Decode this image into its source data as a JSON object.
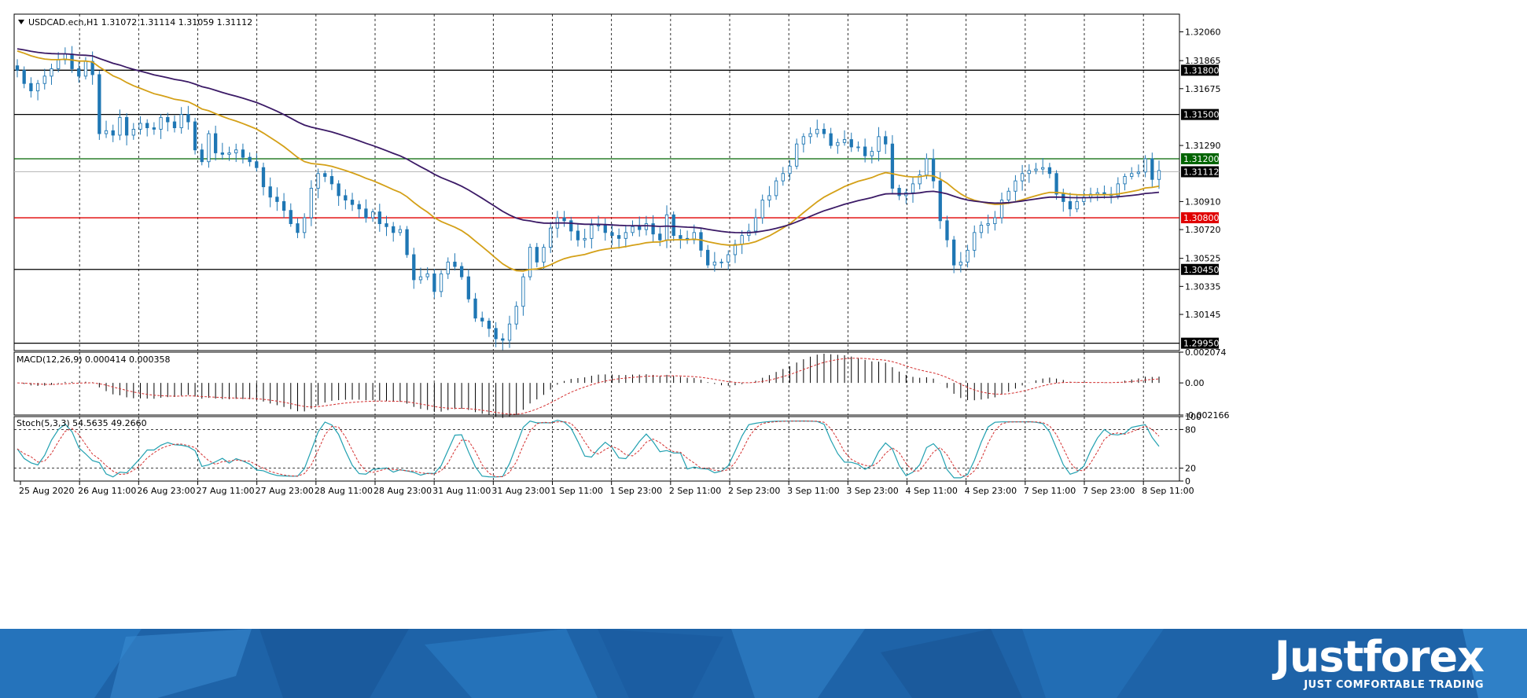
{
  "chart_data": [
    {
      "type": "candlestick",
      "title": "USDCAD.ecn,H1  1.31072 1.31114 1.31059 1.31112",
      "ylim": [
        1.299,
        1.3218
      ],
      "y_ticks": [
        "1.32060",
        "1.31865",
        "1.31675",
        "1.31290",
        "1.30910",
        "1.30720",
        "1.30525",
        "1.30335",
        "1.30145"
      ],
      "x_ticks": [
        "25 Aug 2020",
        "26 Aug 11:00",
        "26 Aug 23:00",
        "27 Aug 11:00",
        "27 Aug 23:00",
        "28 Aug 11:00",
        "28 Aug 23:00",
        "31 Aug 11:00",
        "31 Aug 23:00",
        "1 Sep 11:00",
        "1 Sep 23:00",
        "2 Sep 11:00",
        "2 Sep 23:00",
        "3 Sep 11:00",
        "3 Sep 23:00",
        "4 Sep 11:00",
        "4 Sep 23:00",
        "7 Sep 11:00",
        "7 Sep 23:00",
        "8 Sep 11:00"
      ],
      "horizontal_levels": [
        {
          "value": 1.318,
          "label": "1.31800",
          "color": "#000000"
        },
        {
          "value": 1.315,
          "label": "1.31500",
          "color": "#000000"
        },
        {
          "value": 1.312,
          "label": "1.31200",
          "color": "#006400"
        },
        {
          "value": 1.308,
          "label": "1.30800",
          "color": "#e00000"
        },
        {
          "value": 1.3045,
          "label": "1.30450",
          "color": "#000000"
        },
        {
          "value": 1.2995,
          "label": "1.29950",
          "color": "#000000"
        }
      ],
      "current_price": {
        "value": 1.31112,
        "label": "1.31112"
      },
      "closes": [
        1.318,
        1.3171,
        1.3166,
        1.3171,
        1.3176,
        1.3181,
        1.3187,
        1.3191,
        1.3181,
        1.3176,
        1.3186,
        1.3177,
        1.3137,
        1.3139,
        1.3136,
        1.3148,
        1.3136,
        1.314,
        1.3144,
        1.3141,
        1.314,
        1.3148,
        1.3145,
        1.3141,
        1.315,
        1.3145,
        1.3126,
        1.3118,
        1.3137,
        1.3124,
        1.3123,
        1.3124,
        1.3126,
        1.3121,
        1.3118,
        1.3114,
        1.3101,
        1.3094,
        1.3091,
        1.3085,
        1.3076,
        1.307,
        1.308,
        1.31,
        1.311,
        1.3108,
        1.3103,
        1.3095,
        1.3092,
        1.3089,
        1.3086,
        1.308,
        1.3084,
        1.3076,
        1.3074,
        1.307,
        1.3072,
        1.3055,
        1.3038,
        1.304,
        1.3042,
        1.303,
        1.3042,
        1.305,
        1.3047,
        1.304,
        1.3025,
        1.3012,
        1.301,
        1.3005,
        1.2998,
        1.2997,
        1.3008,
        1.302,
        1.304,
        1.306,
        1.305,
        1.306,
        1.3073,
        1.308,
        1.3078,
        1.3071,
        1.3065,
        1.3066,
        1.3075,
        1.3075,
        1.307,
        1.3068,
        1.3066,
        1.307,
        1.3074,
        1.3072,
        1.3076,
        1.3069,
        1.3065,
        1.3082,
        1.3068,
        1.3066,
        1.3065,
        1.307,
        1.3058,
        1.3048,
        1.305,
        1.305,
        1.3055,
        1.3062,
        1.3068,
        1.3071,
        1.308,
        1.3092,
        1.3095,
        1.3105,
        1.311,
        1.3115,
        1.313,
        1.3135,
        1.3137,
        1.314,
        1.3137,
        1.3129,
        1.3131,
        1.3133,
        1.3128,
        1.3128,
        1.3122,
        1.3125,
        1.3135,
        1.313,
        1.31,
        1.3095,
        1.3097,
        1.3103,
        1.3109,
        1.312,
        1.3105,
        1.3078,
        1.3065,
        1.3048,
        1.305,
        1.3058,
        1.307,
        1.3075,
        1.3076,
        1.308,
        1.3092,
        1.3098,
        1.3105,
        1.311,
        1.3112,
        1.3113,
        1.3114,
        1.311,
        1.3096,
        1.3091,
        1.3086,
        1.3091,
        1.3094,
        1.3096,
        1.3097,
        1.3096,
        1.3095,
        1.3103,
        1.3108,
        1.311,
        1.3111,
        1.312,
        1.3106,
        1.3112
      ],
      "ma_slow_start": 1.3195,
      "ma_fast_start": 1.3194,
      "macd": {
        "label": "MACD(12,26,9) 0.000414 0.000358",
        "ylim": [
          -0.002166,
          0.002074
        ],
        "y_ticks": [
          "0.002074",
          "0.00",
          "-0.002166"
        ]
      },
      "stochastic": {
        "label": "Stoch(5,3,3) 54.5635 49.2660",
        "ylim": [
          0,
          100
        ],
        "y_ticks": [
          "100",
          "80",
          "20",
          "0"
        ],
        "levels": [
          80,
          20
        ]
      }
    }
  ],
  "brand": {
    "name": "Justforex",
    "tagline": "JUST COMFORTABLE TRADING"
  },
  "colors": {
    "candle": "#1f77b4",
    "ma_fast": "#d4a017",
    "ma_slow": "#3b1a66",
    "macd_signal": "#d43030",
    "stoch_main": "#20a0b0",
    "stoch_signal": "#d43030",
    "banner": "#1e63a8"
  }
}
